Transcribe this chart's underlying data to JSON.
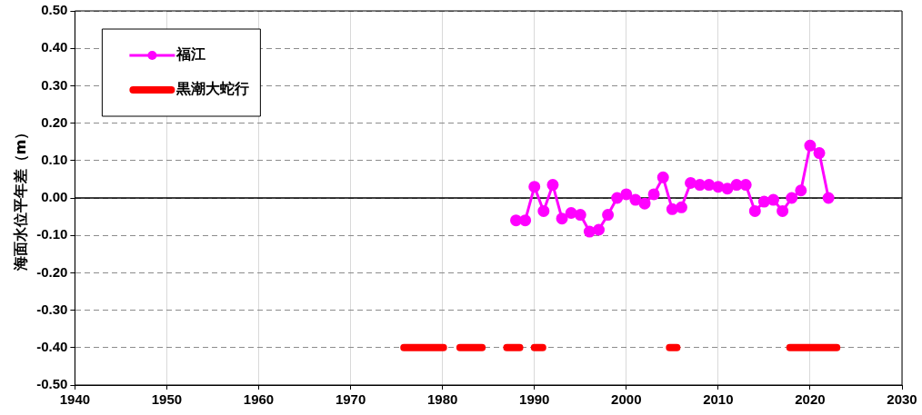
{
  "chart_data": {
    "type": "line",
    "ylabel": "海面水位平年差（m）",
    "xlim": [
      1940,
      2030
    ],
    "xticks": [
      1940,
      1950,
      1960,
      1970,
      1980,
      1990,
      2000,
      2010,
      2020,
      2030
    ],
    "ylim": [
      -0.5,
      0.5
    ],
    "yticks": [
      {
        "value": -0.5,
        "label": "-0.50"
      },
      {
        "value": -0.4,
        "label": "-0.40"
      },
      {
        "value": -0.3,
        "label": "-0.30"
      },
      {
        "value": -0.2,
        "label": "-0.20"
      },
      {
        "value": -0.1,
        "label": "-0.10"
      },
      {
        "value": 0,
        "label": "0.00"
      },
      {
        "value": 0.1,
        "label": "0.10"
      },
      {
        "value": 0.2,
        "label": "0.20"
      },
      {
        "value": 0.3,
        "label": "0.30"
      },
      {
        "value": 0.4,
        "label": "0.40"
      },
      {
        "value": 0.5,
        "label": "0.50"
      }
    ],
    "grid": true,
    "legend": "top left",
    "ref_lines": [
      {
        "axis": "y",
        "value": 0,
        "color": "#000000"
      }
    ],
    "series": [
      {
        "name": "福江",
        "color": "#ff00ff",
        "marker": "circle",
        "x": [
          1988,
          1989,
          1990,
          1991,
          1992,
          1993,
          1994,
          1995,
          1996,
          1997,
          1998,
          1999,
          2000,
          2001,
          2002,
          2003,
          2004,
          2005,
          2006,
          2007,
          2008,
          2009,
          2010,
          2011,
          2012,
          2013,
          2014,
          2015,
          2016,
          2017,
          2018,
          2019,
          2020,
          2021,
          2022
        ],
        "values": [
          -0.06,
          -0.06,
          0.03,
          -0.035,
          0.035,
          -0.055,
          -0.04,
          -0.045,
          -0.09,
          -0.085,
          -0.045,
          0.0,
          0.01,
          -0.005,
          -0.015,
          0.01,
          0.055,
          -0.03,
          -0.025,
          0.04,
          0.035,
          0.035,
          0.03,
          0.025,
          0.035,
          0.035,
          -0.035,
          -0.01,
          -0.005,
          -0.035,
          0.0,
          0.02,
          0.14,
          0.12,
          0.0
        ]
      },
      {
        "name": "黒潮大蛇行",
        "color": "#ff0000",
        "marker": "none",
        "x": [
          1975.8,
          1980.1,
          1981,
          1981.9,
          1984.3,
          1985,
          1987.0,
          1988.4,
          1989,
          1990.0,
          1990.9,
          2000,
          2004.7,
          2005.5,
          2010,
          2017.8,
          2022.9
        ],
        "values": [
          -0.4,
          -0.4,
          null,
          -0.4,
          -0.4,
          null,
          -0.4,
          -0.4,
          null,
          -0.4,
          -0.4,
          null,
          -0.4,
          -0.4,
          null,
          -0.4,
          -0.4
        ]
      }
    ]
  }
}
